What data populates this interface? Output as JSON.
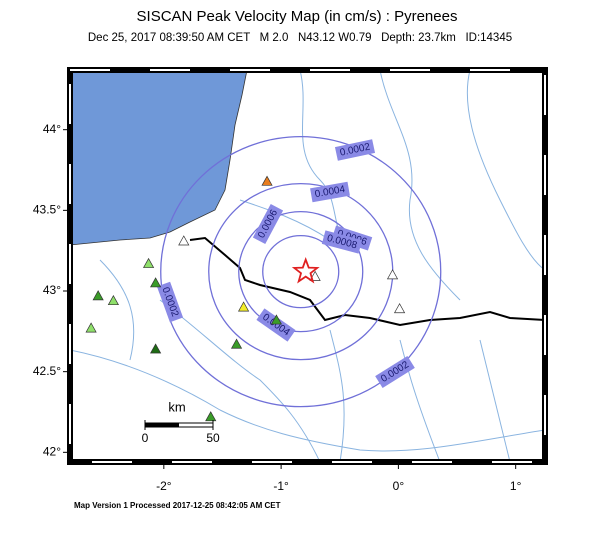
{
  "header": {
    "title": "SISCAN Peak Velocity Map (in cm/s) : Pyrenees",
    "subtitle": "Dec 25, 2017 08:39:50 AM CET   M 2.0   N43.12 W0.79   Depth: 23.7km   ID:14345"
  },
  "map": {
    "xlim": [
      -2.8,
      1.25
    ],
    "ylim": [
      41.94,
      44.37
    ],
    "xticks": [
      {
        "value": -2,
        "label": "-2°"
      },
      {
        "value": -1,
        "label": "-1°"
      },
      {
        "value": 0,
        "label": "0°"
      },
      {
        "value": 1,
        "label": "1°"
      }
    ],
    "yticks": [
      {
        "value": 42,
        "label": "42°"
      },
      {
        "value": 42.5,
        "label": "42.5°"
      },
      {
        "value": 43,
        "label": "43°"
      },
      {
        "value": 43.5,
        "label": "43.5°"
      },
      {
        "value": 44,
        "label": "44°"
      }
    ],
    "epicenter": {
      "lon": -0.79,
      "lat": 43.12
    },
    "contour_levels": [
      0.0002,
      0.0004,
      0.0006,
      0.0008
    ],
    "contour_labels": [
      0.0002,
      0.0004,
      0.0006,
      0.0006,
      0.0008,
      0.0004,
      0.0002,
      0.0002
    ],
    "stations": [
      {
        "lon": -1.83,
        "lat": 43.31,
        "color": "#ffffff"
      },
      {
        "lon": -1.12,
        "lat": 43.68,
        "color": "#e87d1e"
      },
      {
        "lon": -0.05,
        "lat": 43.1,
        "color": "#ffffff"
      },
      {
        "lon": 0.01,
        "lat": 42.89,
        "color": "#ffffff"
      },
      {
        "lon": -0.71,
        "lat": 43.09,
        "color": "#ffffff"
      },
      {
        "lon": -2.13,
        "lat": 43.17,
        "color": "#8fe06a"
      },
      {
        "lon": -2.07,
        "lat": 43.05,
        "color": "#3a9c28"
      },
      {
        "lon": -2.43,
        "lat": 42.94,
        "color": "#8fe06a"
      },
      {
        "lon": -2.56,
        "lat": 42.97,
        "color": "#3a9c28"
      },
      {
        "lon": -2.62,
        "lat": 42.77,
        "color": "#8fe06a"
      },
      {
        "lon": -1.32,
        "lat": 42.9,
        "color": "#f2ec2a"
      },
      {
        "lon": -1.04,
        "lat": 42.82,
        "color": "#3a9c28"
      },
      {
        "lon": -2.07,
        "lat": 42.64,
        "color": "#1e6b14"
      },
      {
        "lon": -1.38,
        "lat": 42.67,
        "color": "#3a9c28"
      },
      {
        "lon": -1.6,
        "lat": 42.22,
        "color": "#3a9c28"
      }
    ],
    "scale": {
      "unit": "km",
      "ticks": [
        0,
        50
      ]
    }
  },
  "footer": "Map Version 1 Processed 2017-12-25 08:42:05 AM CET"
}
